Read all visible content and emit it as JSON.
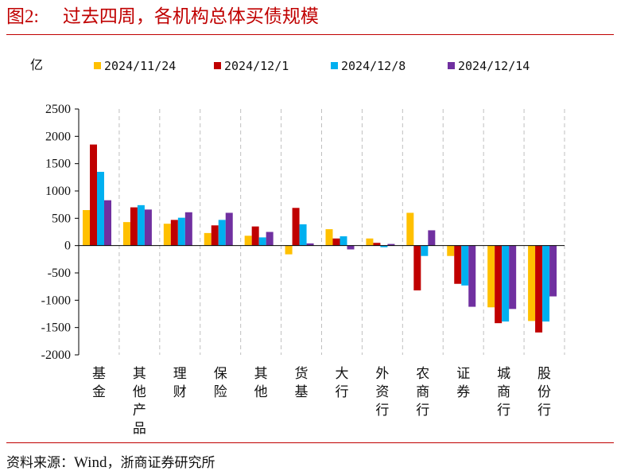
{
  "figure": {
    "title_prefix": "图",
    "title_number": "2:",
    "title_text": "过去四周，各机构总体买债规模",
    "source_prefix": "资料来源：",
    "source_wind": "Wind",
    "source_rest": "，浙商证券研究所"
  },
  "colors": {
    "title": "#c00000",
    "series": [
      "#ffc000",
      "#c00000",
      "#00b0f0",
      "#7030a0"
    ]
  },
  "chart_data": {
    "type": "bar",
    "ylabel": "亿",
    "ylim": [
      -2000,
      2500
    ],
    "yticks": [
      2500,
      2000,
      1500,
      1000,
      500,
      0,
      -500,
      -1000,
      -1500,
      -2000
    ],
    "grid": "vertical dashed separators between categories",
    "legend_position": "top",
    "categories": [
      "基金",
      "其他产品",
      "理财",
      "保险",
      "其他",
      "货基",
      "大行",
      "外资行",
      "农商行",
      "证券",
      "城商行",
      "股份行"
    ],
    "series": [
      {
        "name": "2024/11/24",
        "values": [
          650,
          430,
          400,
          230,
          180,
          -160,
          300,
          130,
          600,
          -190,
          -1130,
          -1380
        ]
      },
      {
        "name": "2024/12/1",
        "values": [
          1850,
          700,
          470,
          370,
          350,
          690,
          130,
          50,
          -820,
          -700,
          -1420,
          -1590
        ]
      },
      {
        "name": "2024/12/8",
        "values": [
          1350,
          740,
          510,
          470,
          150,
          390,
          170,
          -30,
          -190,
          -730,
          -1390,
          -1390
        ]
      },
      {
        "name": "2024/12/14",
        "values": [
          830,
          660,
          610,
          600,
          250,
          40,
          -70,
          30,
          280,
          -1120,
          -1160,
          -930
        ]
      }
    ]
  }
}
